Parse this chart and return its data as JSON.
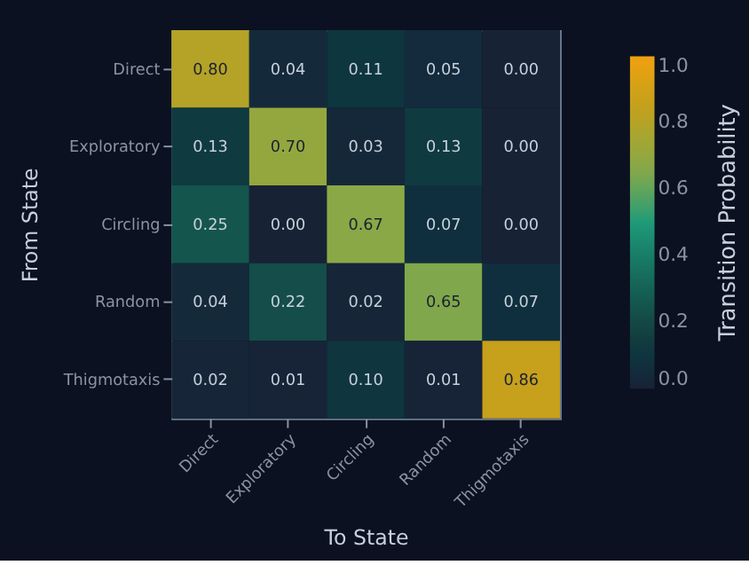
{
  "chart_data": {
    "type": "heatmap",
    "xlabel": "To State",
    "ylabel": "From State",
    "clabel": "Transition Probability",
    "categories": [
      "Direct",
      "Exploratory",
      "Circling",
      "Random",
      "Thigmotaxis"
    ],
    "y_categories": [
      "Direct",
      "Exploratory",
      "Circling",
      "Random",
      "Thigmotaxis"
    ],
    "cells": [
      [
        0.8,
        0.04,
        0.11,
        0.05,
        0.0
      ],
      [
        0.13,
        0.7,
        0.03,
        0.13,
        0.0
      ],
      [
        0.25,
        0.0,
        0.67,
        0.07,
        0.0
      ],
      [
        0.04,
        0.22,
        0.02,
        0.65,
        0.07
      ],
      [
        0.02,
        0.01,
        0.1,
        0.01,
        0.86
      ]
    ],
    "cell_labels": [
      [
        "0.80",
        "0.04",
        "0.11",
        "0.05",
        "0.00"
      ],
      [
        "0.13",
        "0.70",
        "0.03",
        "0.13",
        "0.00"
      ],
      [
        "0.25",
        "0.00",
        "0.67",
        "0.07",
        "0.00"
      ],
      [
        "0.04",
        "0.22",
        "0.02",
        "0.65",
        "0.07"
      ],
      [
        "0.02",
        "0.01",
        "0.10",
        "0.01",
        "0.86"
      ]
    ],
    "clim": [
      0.0,
      1.0
    ],
    "cticks": [
      {
        "value": 0,
        "label": "0.0"
      },
      0.2,
      0.4,
      0.6,
      0.8,
      {
        "value": 1,
        "label": "1.0"
      }
    ]
  }
}
